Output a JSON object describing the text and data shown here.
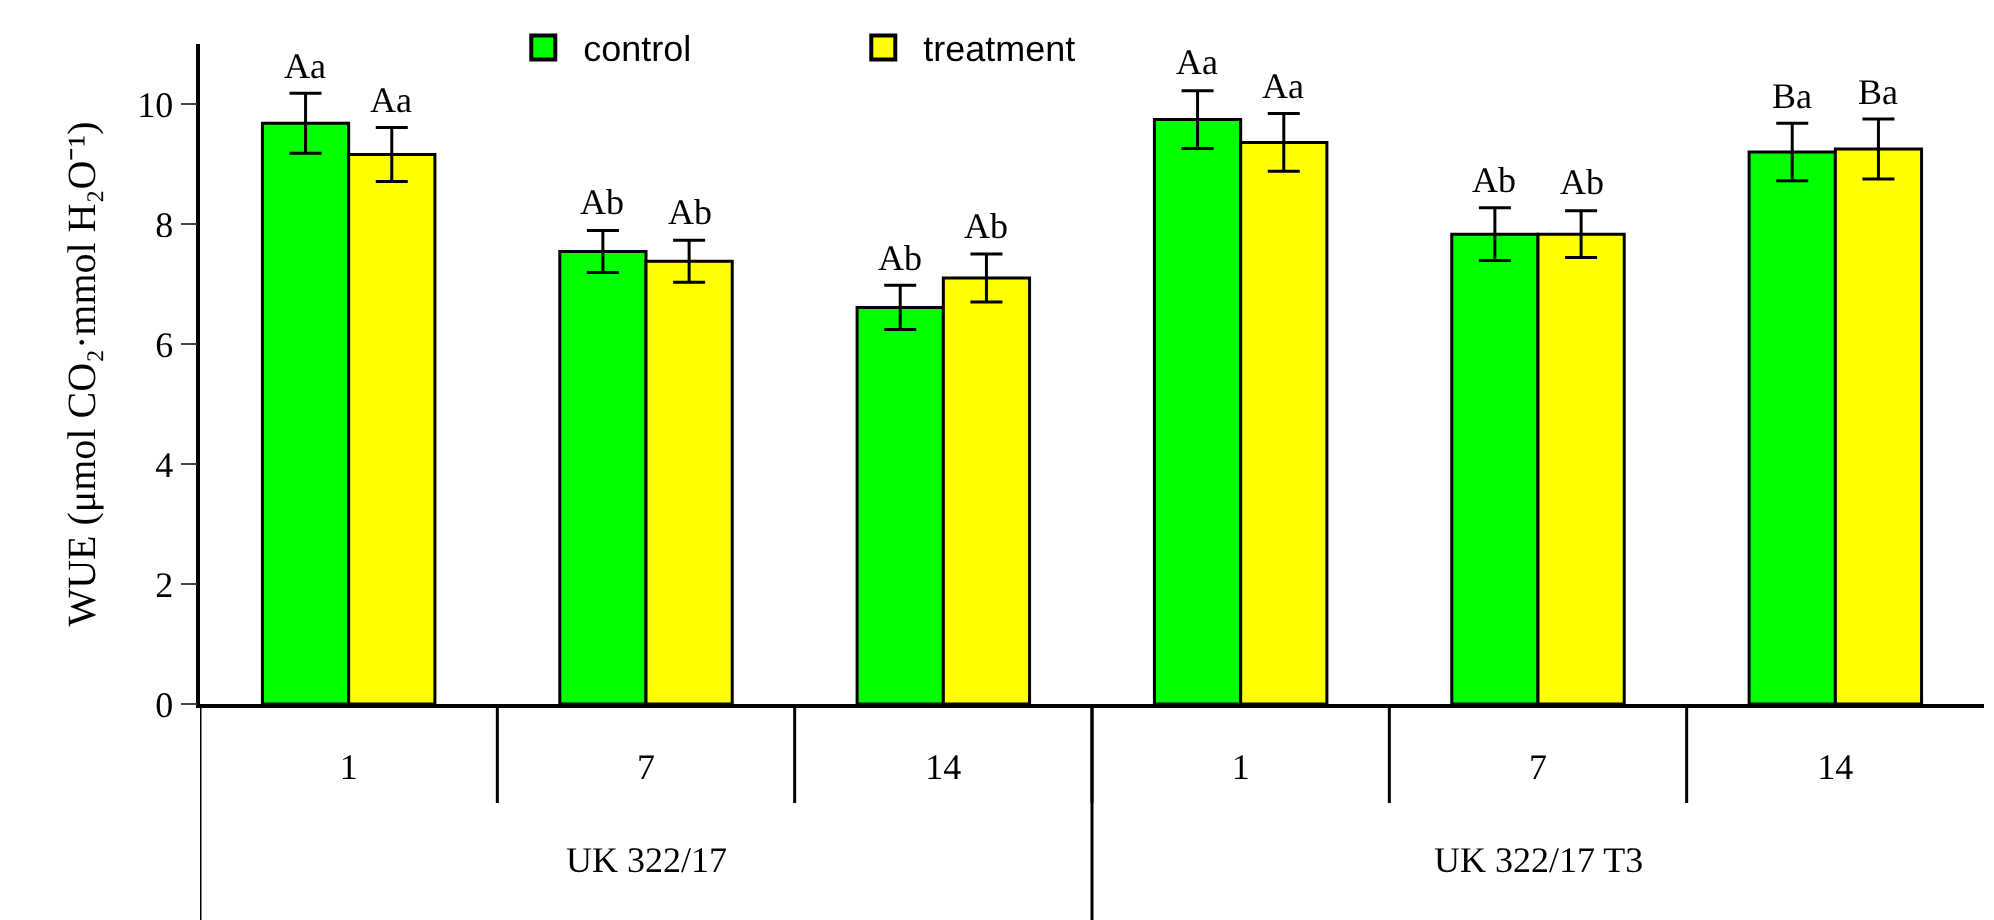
{
  "chart_data": {
    "type": "bar",
    "ylabel": "WUE (μmol CO₂·mmol H₂O⁻¹)",
    "categories": [
      "1",
      "7",
      "14",
      "1",
      "7",
      "14"
    ],
    "series": [
      {
        "name": "control",
        "color": "#00ff00",
        "values": [
          9.68,
          7.54,
          6.61,
          9.74,
          7.83,
          9.2
        ],
        "errors": [
          0.5,
          0.35,
          0.37,
          0.48,
          0.44,
          0.48
        ],
        "value_labels": [
          "Aa",
          "Ab",
          "Ab",
          "Aa",
          "Ab",
          "Ba"
        ]
      },
      {
        "name": "treatment",
        "color": "#ffff00",
        "values": [
          9.16,
          7.38,
          7.1,
          9.36,
          7.83,
          9.25
        ],
        "errors": [
          0.45,
          0.35,
          0.4,
          0.48,
          0.39,
          0.5
        ],
        "value_labels": [
          "Aa",
          "Ab",
          "Ab",
          "Aa",
          "Ab",
          "Ba"
        ]
      }
    ],
    "annotations": [
      "UK 322/17",
      "UK 322/17 T3"
    ],
    "ylim": [
      0,
      11
    ],
    "yticks": [
      0,
      2,
      4,
      6,
      8,
      10
    ],
    "legend": "top"
  }
}
